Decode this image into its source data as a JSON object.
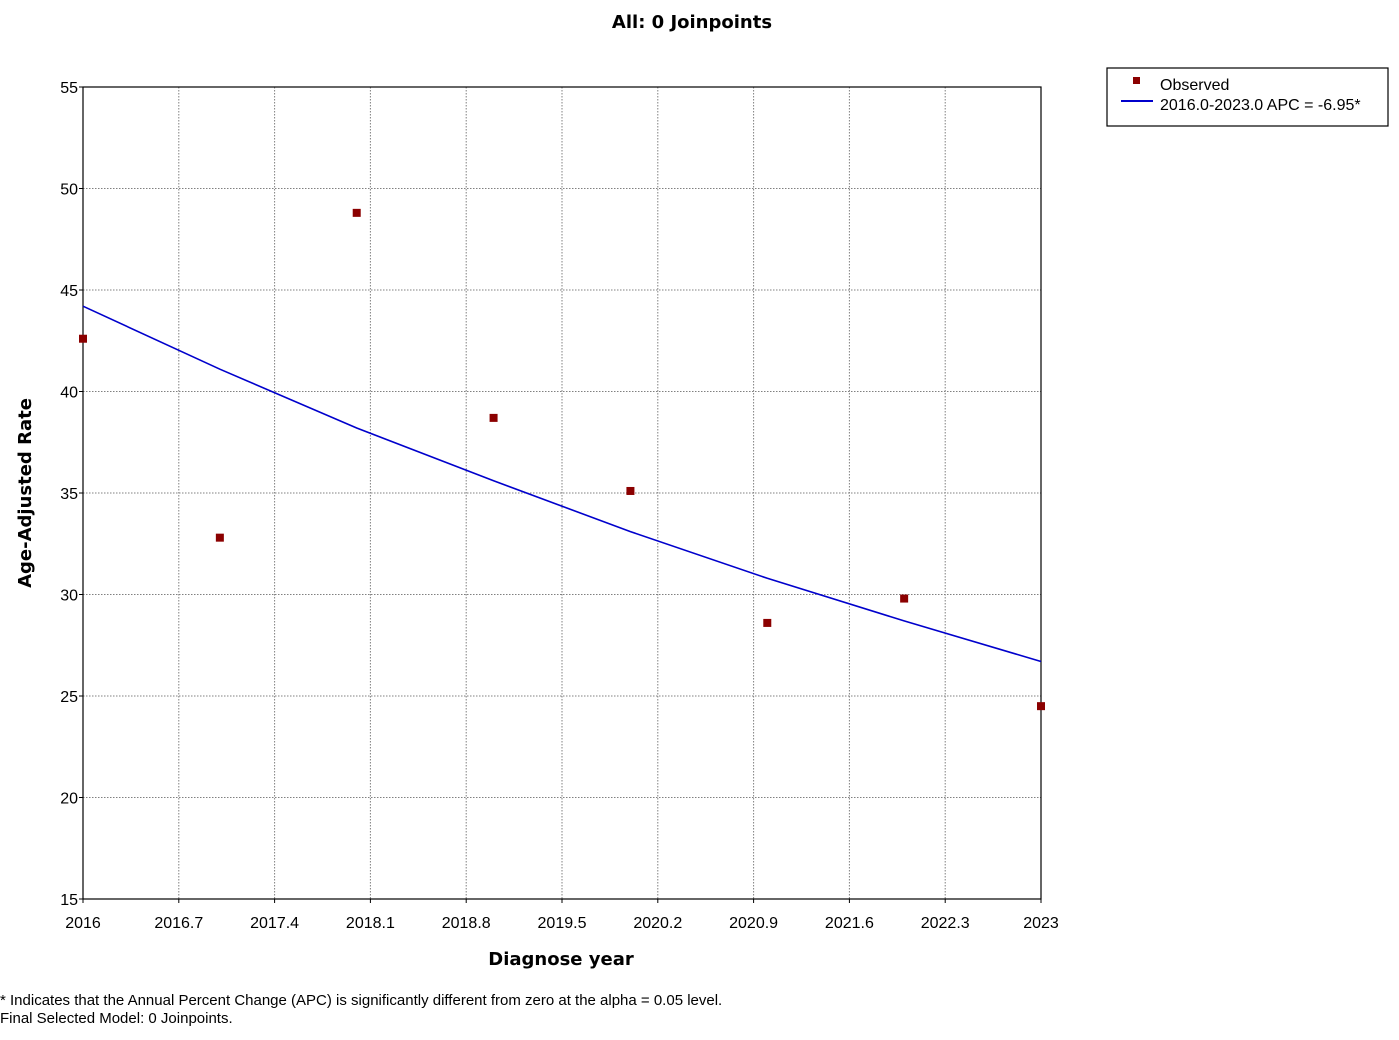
{
  "chart_data": {
    "type": "scatter",
    "title": "All: 0 Joinpoints",
    "xlabel": "Diagnose year",
    "ylabel": "Age-Adjusted Rate",
    "xlim": [
      2016,
      2023
    ],
    "ylim": [
      15,
      55
    ],
    "x_ticks": [
      "2016",
      "2016.7",
      "2017.4",
      "2018.1",
      "2018.8",
      "2019.5",
      "2020.2",
      "2020.9",
      "2021.6",
      "2022.3",
      "2023"
    ],
    "x_tick_values": [
      2016,
      2016.7,
      2017.4,
      2018.1,
      2018.8,
      2019.5,
      2020.2,
      2020.9,
      2021.6,
      2022.3,
      2023
    ],
    "y_ticks": [
      "15",
      "20",
      "25",
      "30",
      "35",
      "40",
      "45",
      "50",
      "55"
    ],
    "y_tick_values": [
      15,
      20,
      25,
      30,
      35,
      40,
      45,
      50,
      55
    ],
    "grid": true,
    "legend_position": "top-right, outside plot",
    "series": [
      {
        "name": "Observed",
        "kind": "points",
        "color": "#8b0000",
        "x": [
          2016,
          2017,
          2018,
          2019,
          2020,
          2021,
          2022,
          2023
        ],
        "y": [
          42.6,
          32.8,
          48.8,
          38.7,
          35.1,
          28.6,
          29.8,
          24.5
        ]
      },
      {
        "name": "2016.0-2023.0 APC  = -6.95*",
        "kind": "line",
        "color": "#0000cc",
        "x": [
          2016,
          2017,
          2018,
          2019,
          2020,
          2021,
          2022,
          2023
        ],
        "y": [
          44.2,
          41.1,
          38.2,
          35.6,
          33.1,
          30.8,
          28.7,
          26.7
        ]
      }
    ]
  },
  "footnotes": {
    "line1": "* Indicates that the Annual Percent Change (APC) is significantly different from zero at the alpha = 0.05 level.",
    "line2": "Final Selected Model: 0 Joinpoints."
  },
  "colors": {
    "grid": "#808080",
    "axis": "#000000",
    "observed_marker": "#8b0000",
    "fit_line": "#0000cc"
  }
}
